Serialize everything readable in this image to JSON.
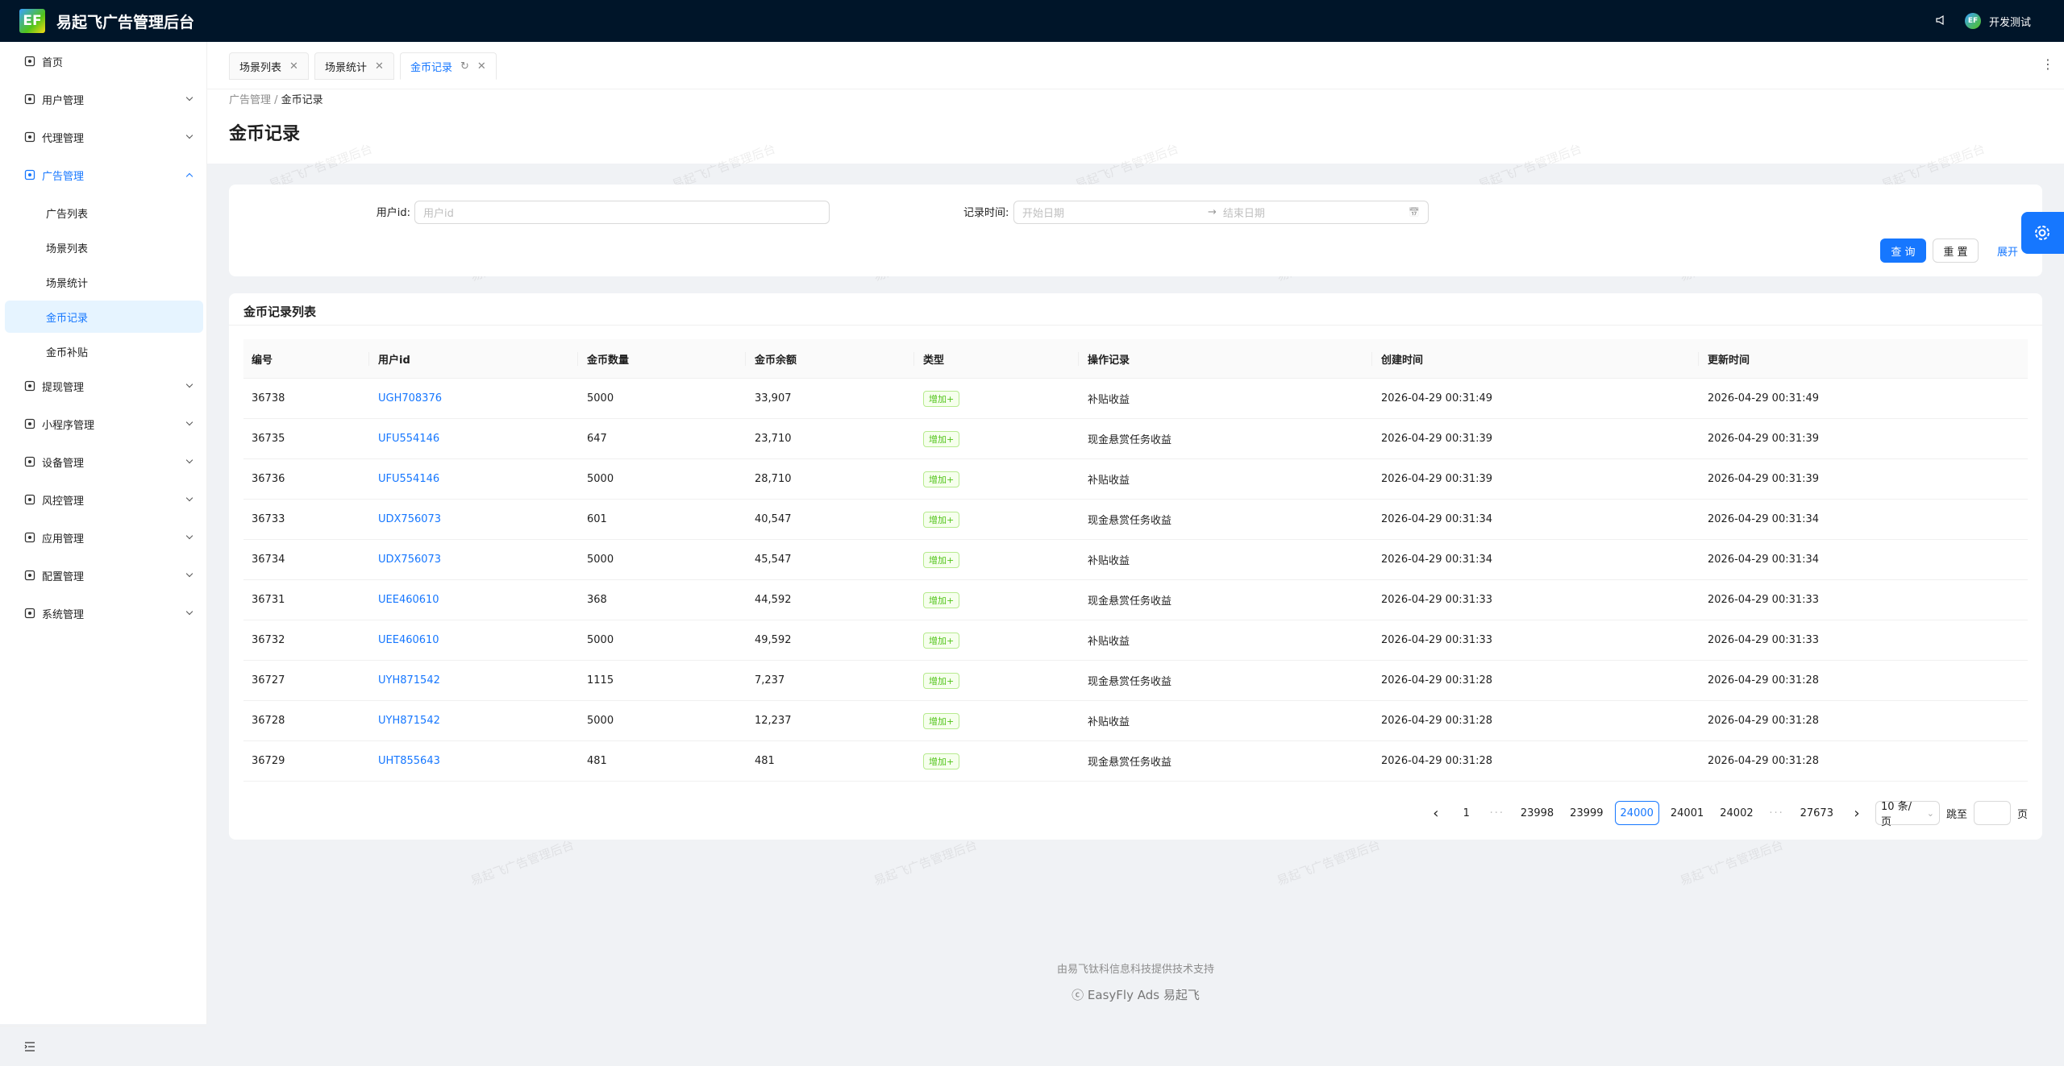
{
  "header": {
    "logo": "EF",
    "title": "易起飞广告管理后台",
    "avatar": "EF",
    "user": "开发测试"
  },
  "sidebar": {
    "items": [
      {
        "label": "首页"
      },
      {
        "label": "用户管理"
      },
      {
        "label": "代理管理"
      },
      {
        "label": "广告管理",
        "children": [
          "广告列表",
          "场景列表",
          "场景统计",
          "金币记录",
          "金币补贴"
        ]
      },
      {
        "label": "提现管理"
      },
      {
        "label": "小程序管理"
      },
      {
        "label": "设备管理"
      },
      {
        "label": "风控管理"
      },
      {
        "label": "应用管理"
      },
      {
        "label": "配置管理"
      },
      {
        "label": "系统管理"
      }
    ]
  },
  "tabs": [
    "场景列表",
    "场景统计",
    "金币记录"
  ],
  "breadcrumb": [
    "广告管理",
    "金币记录"
  ],
  "page_title": "金币记录",
  "watermark": "易起飞广告管理后台",
  "search": {
    "user_label": "用户id:",
    "user_placeholder": "用户id",
    "time_label": "记录时间:",
    "start_placeholder": "开始日期",
    "end_placeholder": "结束日期",
    "query": "查 询",
    "reset": "重 置",
    "expand": "展开"
  },
  "table": {
    "title": "金币记录列表",
    "columns": [
      "编号",
      "用户id",
      "金币数量",
      "金币余额",
      "类型",
      "操作记录",
      "创建时间",
      "更新时间"
    ],
    "rows": [
      [
        "36738",
        "UGH708376",
        "5000",
        "33,907",
        "增加+",
        "补贴收益",
        "2026-04-29 00:31:49",
        "2026-04-29 00:31:49"
      ],
      [
        "36735",
        "UFU554146",
        "647",
        "23,710",
        "增加+",
        "现金悬赏任务收益",
        "2026-04-29 00:31:39",
        "2026-04-29 00:31:39"
      ],
      [
        "36736",
        "UFU554146",
        "5000",
        "28,710",
        "增加+",
        "补贴收益",
        "2026-04-29 00:31:39",
        "2026-04-29 00:31:39"
      ],
      [
        "36733",
        "UDX756073",
        "601",
        "40,547",
        "增加+",
        "现金悬赏任务收益",
        "2026-04-29 00:31:34",
        "2026-04-29 00:31:34"
      ],
      [
        "36734",
        "UDX756073",
        "5000",
        "45,547",
        "增加+",
        "补贴收益",
        "2026-04-29 00:31:34",
        "2026-04-29 00:31:34"
      ],
      [
        "36731",
        "UEE460610",
        "368",
        "44,592",
        "增加+",
        "现金悬赏任务收益",
        "2026-04-29 00:31:33",
        "2026-04-29 00:31:33"
      ],
      [
        "36732",
        "UEE460610",
        "5000",
        "49,592",
        "增加+",
        "补贴收益",
        "2026-04-29 00:31:33",
        "2026-04-29 00:31:33"
      ],
      [
        "36727",
        "UYH871542",
        "1115",
        "7,237",
        "增加+",
        "现金悬赏任务收益",
        "2026-04-29 00:31:28",
        "2026-04-29 00:31:28"
      ],
      [
        "36728",
        "UYH871542",
        "5000",
        "12,237",
        "增加+",
        "补贴收益",
        "2026-04-29 00:31:28",
        "2026-04-29 00:31:28"
      ],
      [
        "36729",
        "UHT855643",
        "481",
        "481",
        "增加+",
        "现金悬赏任务收益",
        "2026-04-29 00:31:28",
        "2026-04-29 00:31:28"
      ]
    ]
  },
  "pagination": {
    "pages_before": [
      "1"
    ],
    "pages_mid": [
      "23998",
      "23999",
      "24000",
      "24001",
      "24002"
    ],
    "pages_after": [
      "27673"
    ],
    "current": "24000",
    "page_size": "10 条/页",
    "jump_label": "跳至",
    "jump_unit": "页"
  },
  "footer": {
    "support": "由易飞钛科信息科技提供技术支持",
    "copyright": "ⓒ EasyFly Ads 易起飞"
  }
}
